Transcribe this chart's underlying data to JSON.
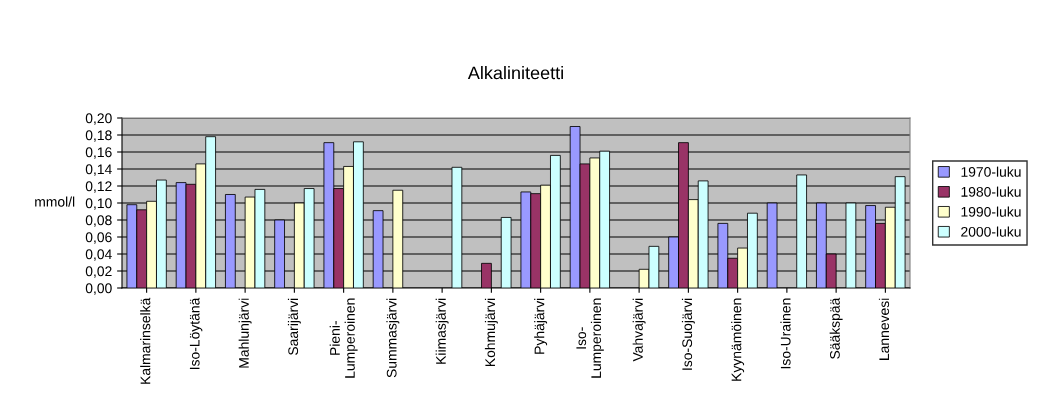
{
  "chart_data": {
    "type": "bar",
    "title": "Alkaliniteetti",
    "ylabel": "mmol/l",
    "categories": [
      "Kalmarinselkä",
      "Iso-Löytänä",
      "Mahlunjärvi",
      "Saarijärvi",
      "Pieni-\nLumperoinen",
      "Summasjärvi",
      "Kiimasjärvi",
      "Kohmujärvi",
      "Pyhäjärvi",
      "Iso-\nLumperoinen",
      "Vahvajärvi",
      "Iso-Suojärvi",
      "Kyynämöinen",
      "Iso-Urainen",
      "Sääkspää",
      "Lannevesi"
    ],
    "series": [
      {
        "name": "1970-luku",
        "color": "#9999ff",
        "values": [
          0.098,
          0.124,
          0.11,
          0.08,
          0.171,
          0.091,
          null,
          null,
          0.113,
          0.19,
          null,
          0.06,
          0.076,
          0.1,
          0.1,
          0.097
        ]
      },
      {
        "name": "1980-luku",
        "color": "#993366",
        "values": [
          0.092,
          0.122,
          null,
          null,
          0.117,
          null,
          null,
          0.029,
          0.111,
          0.146,
          null,
          0.171,
          0.035,
          null,
          0.04,
          0.076
        ]
      },
      {
        "name": "1990-luku",
        "color": "#ffffcc",
        "values": [
          0.102,
          0.146,
          0.107,
          0.1,
          0.143,
          0.115,
          null,
          null,
          0.121,
          0.153,
          0.022,
          0.104,
          0.047,
          null,
          null,
          0.095
        ]
      },
      {
        "name": "2000-luku",
        "color": "#ccffff",
        "values": [
          0.127,
          0.178,
          0.116,
          0.117,
          0.172,
          null,
          0.142,
          0.083,
          0.156,
          0.161,
          0.049,
          0.126,
          0.088,
          0.133,
          0.1,
          0.131
        ]
      }
    ],
    "ylim": [
      0,
      0.2
    ],
    "yticks": [
      {
        "value": 0,
        "label": "0,00"
      },
      {
        "value": 0.02,
        "label": "0,02"
      },
      {
        "value": 0.04,
        "label": "0,04"
      },
      {
        "value": 0.06,
        "label": "0,06"
      },
      {
        "value": 0.08,
        "label": "0,08"
      },
      {
        "value": 0.1,
        "label": "0,10"
      },
      {
        "value": 0.12,
        "label": "0,12"
      },
      {
        "value": 0.14,
        "label": "0,14"
      },
      {
        "value": 0.16,
        "label": "0,16"
      },
      {
        "value": 0.18,
        "label": "0,18"
      },
      {
        "value": 0.2,
        "label": "0,20"
      }
    ],
    "grid": "y",
    "legend": "right"
  }
}
